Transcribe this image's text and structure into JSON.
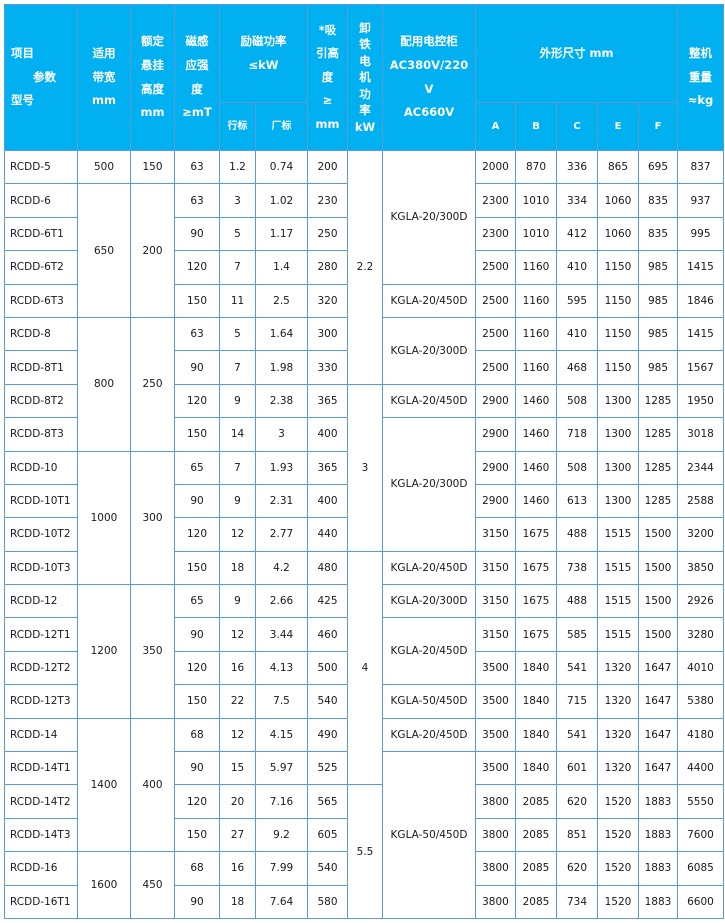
{
  "colors": {
    "header_bg": "#00b0f0",
    "border": "#5b9bd5"
  },
  "header": {
    "item_lines": [
      "项目",
      "参数",
      "型号"
    ],
    "bandwidth": [
      "适用",
      "带宽",
      "mm"
    ],
    "height": [
      "额定",
      "悬挂",
      "高度",
      "mm"
    ],
    "field": [
      "磁感",
      "应强",
      "度",
      "≥mT"
    ],
    "power": [
      "励磁功率",
      "≤kW"
    ],
    "power_sub": [
      "行标",
      "厂标"
    ],
    "suction": [
      "*吸",
      "引高",
      "度",
      "≥",
      "mm"
    ],
    "motor": [
      "卸",
      "铁",
      "电",
      "机",
      "功",
      "率",
      "kW"
    ],
    "controller": [
      "配用电控柜",
      "AC380V/220",
      "V",
      "AC660V"
    ],
    "dims": "外形尺寸 mm",
    "dims_sub": [
      "A",
      "B",
      "C",
      "E",
      "F"
    ],
    "weight": [
      "整机",
      "重量",
      "≈kg"
    ]
  },
  "rows": [
    {
      "model": "RCDD-5",
      "field": "63",
      "p_ind": "1.2",
      "p_fac": "0.74",
      "suction": "200",
      "A": "2000",
      "B": "870",
      "C": "336",
      "E": "865",
      "F": "695",
      "weight": "837"
    },
    {
      "model": "RCDD-6",
      "field": "63",
      "p_ind": "3",
      "p_fac": "1.02",
      "suction": "230",
      "A": "2300",
      "B": "1010",
      "C": "334",
      "E": "1060",
      "F": "835",
      "weight": "937"
    },
    {
      "model": "RCDD-6T1",
      "field": "90",
      "p_ind": "5",
      "p_fac": "1.17",
      "suction": "250",
      "A": "2300",
      "B": "1010",
      "C": "412",
      "E": "1060",
      "F": "835",
      "weight": "995"
    },
    {
      "model": "RCDD-6T2",
      "field": "120",
      "p_ind": "7",
      "p_fac": "1.4",
      "suction": "280",
      "A": "2500",
      "B": "1160",
      "C": "410",
      "E": "1150",
      "F": "985",
      "weight": "1415"
    },
    {
      "model": "RCDD-6T3",
      "field": "150",
      "p_ind": "11",
      "p_fac": "2.5",
      "suction": "320",
      "A": "2500",
      "B": "1160",
      "C": "595",
      "E": "1150",
      "F": "985",
      "weight": "1846"
    },
    {
      "model": "RCDD-8",
      "field": "63",
      "p_ind": "5",
      "p_fac": "1.64",
      "suction": "300",
      "A": "2500",
      "B": "1160",
      "C": "410",
      "E": "1150",
      "F": "985",
      "weight": "1415"
    },
    {
      "model": "RCDD-8T1",
      "field": "90",
      "p_ind": "7",
      "p_fac": "1.98",
      "suction": "330",
      "A": "2500",
      "B": "1160",
      "C": "468",
      "E": "1150",
      "F": "985",
      "weight": "1567"
    },
    {
      "model": "RCDD-8T2",
      "field": "120",
      "p_ind": "9",
      "p_fac": "2.38",
      "suction": "365",
      "A": "2900",
      "B": "1460",
      "C": "508",
      "E": "1300",
      "F": "1285",
      "weight": "1950"
    },
    {
      "model": "RCDD-8T3",
      "field": "150",
      "p_ind": "14",
      "p_fac": "3",
      "suction": "400",
      "A": "2900",
      "B": "1460",
      "C": "718",
      "E": "1300",
      "F": "1285",
      "weight": "3018"
    },
    {
      "model": "RCDD-10",
      "field": "65",
      "p_ind": "7",
      "p_fac": "1.93",
      "suction": "365",
      "A": "2900",
      "B": "1460",
      "C": "508",
      "E": "1300",
      "F": "1285",
      "weight": "2344"
    },
    {
      "model": "RCDD-10T1",
      "field": "90",
      "p_ind": "9",
      "p_fac": "2.31",
      "suction": "400",
      "A": "2900",
      "B": "1460",
      "C": "613",
      "E": "1300",
      "F": "1285",
      "weight": "2588"
    },
    {
      "model": "RCDD-10T2",
      "field": "120",
      "p_ind": "12",
      "p_fac": "2.77",
      "suction": "440",
      "A": "3150",
      "B": "1675",
      "C": "488",
      "E": "1515",
      "F": "1500",
      "weight": "3200"
    },
    {
      "model": "RCDD-10T3",
      "field": "150",
      "p_ind": "18",
      "p_fac": "4.2",
      "suction": "480",
      "A": "3150",
      "B": "1675",
      "C": "738",
      "E": "1515",
      "F": "1500",
      "weight": "3850"
    },
    {
      "model": "RCDD-12",
      "field": "65",
      "p_ind": "9",
      "p_fac": "2.66",
      "suction": "425",
      "A": "3150",
      "B": "1675",
      "C": "488",
      "E": "1515",
      "F": "1500",
      "weight": "2926"
    },
    {
      "model": "RCDD-12T1",
      "field": "90",
      "p_ind": "12",
      "p_fac": "3.44",
      "suction": "460",
      "A": "3150",
      "B": "1675",
      "C": "585",
      "E": "1515",
      "F": "1500",
      "weight": "3280"
    },
    {
      "model": "RCDD-12T2",
      "field": "120",
      "p_ind": "16",
      "p_fac": "4.13",
      "suction": "500",
      "A": "3500",
      "B": "1840",
      "C": "541",
      "E": "1320",
      "F": "1647",
      "weight": "4010"
    },
    {
      "model": "RCDD-12T3",
      "field": "150",
      "p_ind": "22",
      "p_fac": "7.5",
      "suction": "540",
      "A": "3500",
      "B": "1840",
      "C": "715",
      "E": "1320",
      "F": "1647",
      "weight": "5380"
    },
    {
      "model": "RCDD-14",
      "field": "68",
      "p_ind": "12",
      "p_fac": "4.15",
      "suction": "490",
      "A": "3500",
      "B": "1840",
      "C": "541",
      "E": "1320",
      "F": "1647",
      "weight": "4180"
    },
    {
      "model": "RCDD-14T1",
      "field": "90",
      "p_ind": "15",
      "p_fac": "5.97",
      "suction": "525",
      "A": "3500",
      "B": "1840",
      "C": "601",
      "E": "1320",
      "F": "1647",
      "weight": "4400"
    },
    {
      "model": "RCDD-14T2",
      "field": "120",
      "p_ind": "20",
      "p_fac": "7.16",
      "suction": "565",
      "A": "3800",
      "B": "2085",
      "C": "620",
      "E": "1520",
      "F": "1883",
      "weight": "5550"
    },
    {
      "model": "RCDD-14T3",
      "field": "150",
      "p_ind": "27",
      "p_fac": "9.2",
      "suction": "605",
      "A": "3800",
      "B": "2085",
      "C": "851",
      "E": "1520",
      "F": "1883",
      "weight": "7600"
    },
    {
      "model": "RCDD-16",
      "field": "68",
      "p_ind": "16",
      "p_fac": "7.99",
      "suction": "540",
      "A": "3800",
      "B": "2085",
      "C": "620",
      "E": "1520",
      "F": "1883",
      "weight": "6085"
    },
    {
      "model": "RCDD-16T1",
      "field": "90",
      "p_ind": "18",
      "p_fac": "7.64",
      "suction": "580",
      "A": "3800",
      "B": "2085",
      "C": "734",
      "E": "1520",
      "F": "1883",
      "weight": "6600"
    }
  ],
  "groups": {
    "bandwidth": [
      {
        "value": "500",
        "span": 1
      },
      {
        "value": "650",
        "span": 4
      },
      {
        "value": "800",
        "span": 4
      },
      {
        "value": "1000",
        "span": 4
      },
      {
        "value": "1200",
        "span": 4
      },
      {
        "value": "1400",
        "span": 4
      },
      {
        "value": "1600",
        "span": 2
      }
    ],
    "height": [
      {
        "value": "150",
        "span": 1
      },
      {
        "value": "200",
        "span": 4
      },
      {
        "value": "250",
        "span": 4
      },
      {
        "value": "300",
        "span": 4
      },
      {
        "value": "350",
        "span": 4
      },
      {
        "value": "400",
        "span": 4
      },
      {
        "value": "450",
        "span": 2
      }
    ],
    "motor": [
      {
        "value": "2.2",
        "span": 7
      },
      {
        "value": "3",
        "span": 5
      },
      {
        "value": "4",
        "span": 7
      },
      {
        "value": "5.5",
        "span": 4
      }
    ],
    "controller": [
      {
        "value": "KGLA-20/300D",
        "span": 4
      },
      {
        "value": "KGLA-20/450D",
        "span": 1
      },
      {
        "value": "KGLA-20/300D",
        "span": 2
      },
      {
        "value": "KGLA-20/450D",
        "span": 1
      },
      {
        "value": "KGLA-20/300D",
        "span": 4
      },
      {
        "value": "KGLA-20/450D",
        "span": 1
      },
      {
        "value": "KGLA-20/300D",
        "span": 1
      },
      {
        "value": "KGLA-20/450D",
        "span": 2
      },
      {
        "value": "KGLA-50/450D",
        "span": 1
      },
      {
        "value": "KGLA-20/450D",
        "span": 1
      },
      {
        "value": "KGLA-50/450D",
        "span": 5
      }
    ]
  }
}
